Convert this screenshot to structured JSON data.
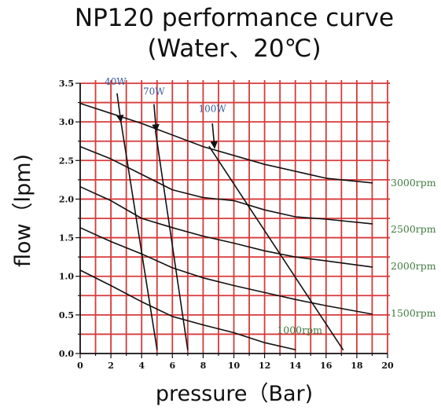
{
  "chart_data": {
    "type": "line",
    "title": "NP120 performance curve",
    "subtitle": "(Water、20℃)",
    "xlabel": "pressure（Bar)",
    "ylabel": "flow（lpm)",
    "xlim": [
      0,
      20
    ],
    "ylim": [
      0,
      3.5
    ],
    "x_ticks": [
      "0",
      "2",
      "4",
      "6",
      "8",
      "10",
      "12",
      "14",
      "16",
      "18",
      "20"
    ],
    "y_ticks": [
      "0.0",
      "0.5",
      "1.0",
      "1.5",
      "2.0",
      "2.5",
      "3.0",
      "3.5"
    ],
    "grid": true,
    "grid_color": "#d63a3a",
    "rpm_color": "#3f7a3f",
    "power_color": "#3a5a9a",
    "series": [
      {
        "name": "3000rpm",
        "kind": "rpm",
        "x": [
          0,
          4,
          8,
          12,
          16,
          19
        ],
        "y": [
          3.24,
          2.98,
          2.68,
          2.45,
          2.27,
          2.21
        ]
      },
      {
        "name": "2500rpm",
        "kind": "rpm",
        "x": [
          0,
          2,
          4,
          6,
          8,
          10,
          12,
          14,
          16,
          19
        ],
        "y": [
          2.68,
          2.52,
          2.32,
          2.12,
          2.02,
          1.98,
          1.86,
          1.77,
          1.74,
          1.68
        ]
      },
      {
        "name": "2000rpm",
        "kind": "rpm",
        "x": [
          0,
          2,
          4,
          6,
          8,
          10,
          12,
          14,
          16,
          19
        ],
        "y": [
          2.16,
          1.98,
          1.75,
          1.63,
          1.52,
          1.43,
          1.33,
          1.25,
          1.2,
          1.12
        ]
      },
      {
        "name": "1500rpm",
        "kind": "rpm",
        "x": [
          0,
          2,
          4,
          6,
          8,
          10,
          12,
          14,
          16,
          19
        ],
        "y": [
          1.63,
          1.45,
          1.29,
          1.11,
          0.98,
          0.88,
          0.79,
          0.7,
          0.62,
          0.51
        ]
      },
      {
        "name": "1000rpm",
        "kind": "rpm",
        "x": [
          0,
          2,
          4,
          6,
          8,
          10,
          12,
          14
        ],
        "y": [
          1.08,
          0.88,
          0.67,
          0.48,
          0.37,
          0.27,
          0.14,
          0.05
        ]
      },
      {
        "name": "40W",
        "kind": "power",
        "x": [
          2.6,
          5.0
        ],
        "y": [
          3.07,
          0.05
        ]
      },
      {
        "name": "70W",
        "kind": "power",
        "x": [
          4.9,
          7.0
        ],
        "y": [
          2.88,
          0.05
        ]
      },
      {
        "name": "100W",
        "kind": "power",
        "x": [
          8.4,
          17.1
        ],
        "y": [
          2.68,
          0.05
        ]
      }
    ],
    "power_arrows": [
      {
        "name": "40W",
        "from": [
          2.4,
          3.37
        ],
        "to": [
          2.65,
          3.0
        ]
      },
      {
        "name": "70W",
        "from": [
          4.8,
          3.23
        ],
        "to": [
          4.95,
          2.88
        ]
      },
      {
        "name": "100W",
        "from": [
          8.6,
          2.98
        ],
        "to": [
          8.75,
          2.66
        ]
      }
    ],
    "power_label_pos": {
      "40W": [
        2.3,
        3.48
      ],
      "70W": [
        4.8,
        3.35
      ],
      "100W": [
        8.6,
        3.13
      ]
    },
    "rpm_label_pos": {
      "3000rpm": [
        20.0,
        2.21
      ],
      "2500rpm": [
        20.0,
        1.61
      ],
      "2000rpm": [
        20.0,
        1.13
      ],
      "1500rpm": [
        20.0,
        0.52
      ],
      "1000rpm": [
        12.6,
        0.3
      ]
    }
  }
}
